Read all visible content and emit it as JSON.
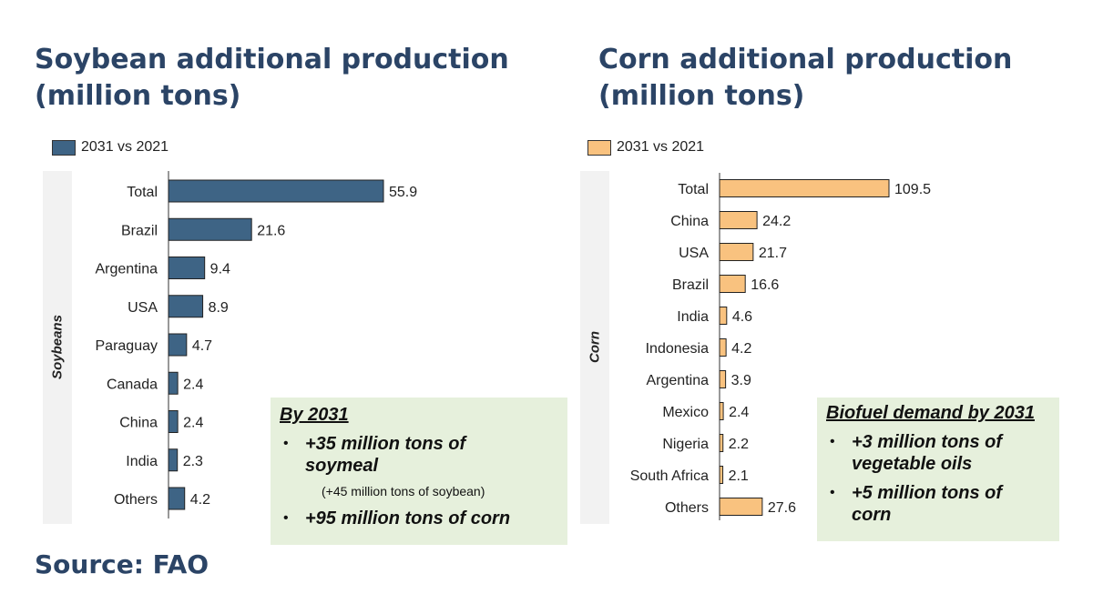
{
  "soy_title": [
    "Soybean additional production",
    "(million tons)"
  ],
  "corn_title": [
    "Corn additional production",
    "(million tons)"
  ],
  "source": "Source: FAO",
  "chart_data": [
    {
      "type": "bar",
      "orientation": "horizontal",
      "side_label": "Soybeans",
      "legend": "2031 vs 2021",
      "color": "#3e6485",
      "categories": [
        "Total",
        "Brazil",
        "Argentina",
        "USA",
        "Paraguay",
        "Canada",
        "China",
        "India",
        "Others"
      ],
      "values": [
        55.9,
        21.6,
        9.4,
        8.9,
        4.7,
        2.4,
        2.4,
        2.3,
        4.2
      ],
      "labels": [
        "55.9",
        "21.6",
        "9.4",
        "8.9",
        "4.7",
        "2.4",
        "2.4",
        "2.3",
        "4.2"
      ],
      "xlim": [
        0,
        55.9
      ]
    },
    {
      "type": "bar",
      "orientation": "horizontal",
      "side_label": "Corn",
      "legend": "2031 vs 2021",
      "color": "#f9c27f",
      "categories": [
        "Total",
        "China",
        "USA",
        "Brazil",
        "India",
        "Indonesia",
        "Argentina",
        "Mexico",
        "Nigeria",
        "South Africa",
        "Others"
      ],
      "values": [
        109.5,
        24.2,
        21.7,
        16.6,
        4.6,
        4.2,
        3.9,
        2.4,
        2.2,
        2.1,
        27.6
      ],
      "labels": [
        "109.5",
        "24.2",
        "21.7",
        "16.6",
        "4.6",
        "4.2",
        "3.9",
        "2.4",
        "2.2",
        "2.1",
        "27.6"
      ],
      "xlim": [
        0,
        109.5
      ]
    }
  ],
  "soy_note": {
    "heading": "By 2031",
    "item1": "+35 million tons of soymeal",
    "item1_sub": "(+45 million tons of soybean)",
    "item2": "+95 million tons of corn"
  },
  "corn_note": {
    "heading": "Biofuel demand by 2031",
    "item1": "+3 million tons of vegetable oils",
    "item2": "+5 million tons of corn"
  }
}
